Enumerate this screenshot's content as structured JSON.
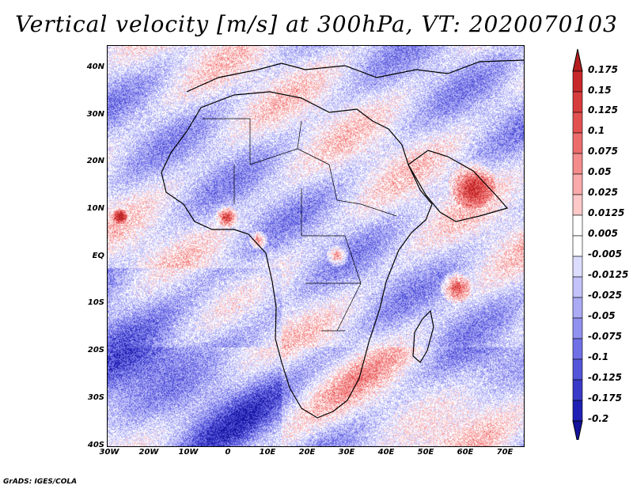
{
  "title": "Vertical velocity [m/s] at 300hPa, VT: 2020070103",
  "credit": "GrADS: IGES/COLA",
  "map": {
    "lat_labels": [
      "40N",
      "30N",
      "20N",
      "10N",
      "EQ",
      "10S",
      "20S",
      "30S",
      "40S"
    ],
    "lon_labels": [
      "30W",
      "20W",
      "10W",
      "0",
      "10E",
      "20E",
      "30E",
      "40E",
      "50E",
      "60E",
      "70E"
    ],
    "lon_range": [
      -30,
      75
    ],
    "lat_range": [
      -40,
      45
    ],
    "variable": "vertical velocity",
    "level_hPa": 300,
    "units": "m/s"
  },
  "colorbar": {
    "labels": [
      "0.175",
      "0.15",
      "0.125",
      "0.1",
      "0.075",
      "0.05",
      "0.025",
      "0.0125",
      "0.005",
      "-0.005",
      "-0.0125",
      "-0.025",
      "-0.05",
      "-0.075",
      "-0.1",
      "-0.125",
      "-0.175",
      "-0.2"
    ],
    "colors": [
      "#b41e1e",
      "#c82828",
      "#d63c3c",
      "#e25050",
      "#ec6c6c",
      "#f48c8c",
      "#faaaaa",
      "#fcc8c8",
      "#ffffff",
      "#ffffff",
      "#dcdcff",
      "#c3c3fa",
      "#aaaaf5",
      "#9191f0",
      "#7070e6",
      "#5555d9",
      "#3a3ac8",
      "#2020b4",
      "#12129c"
    ]
  }
}
